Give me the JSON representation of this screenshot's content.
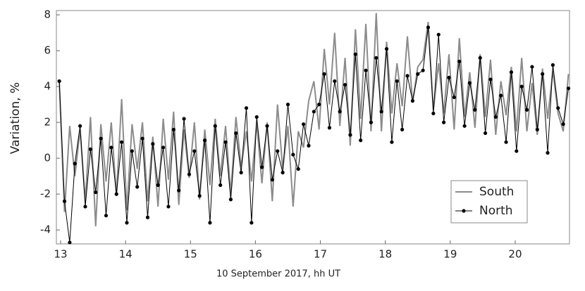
{
  "chart_data": {
    "type": "line",
    "x_label": "10 September 2017, hh UT",
    "y_label": "Variation, %",
    "xlim": [
      12.935,
      20.836
    ],
    "ylim": [
      -4.78,
      8.24
    ],
    "xticks": [
      13,
      14,
      15,
      16,
      17,
      18,
      19,
      20
    ],
    "yticks": [
      -4,
      -2,
      0,
      2,
      4,
      6,
      8
    ],
    "grid": false,
    "legend": "lower right",
    "x": [
      12.98,
      13.06,
      13.14,
      13.22,
      13.3,
      13.38,
      13.46,
      13.54,
      13.62,
      13.7,
      13.78,
      13.86,
      13.94,
      14.02,
      14.1,
      14.18,
      14.26,
      14.34,
      14.42,
      14.5,
      14.58,
      14.66,
      14.74,
      14.82,
      14.9,
      14.98,
      15.06,
      15.14,
      15.22,
      15.3,
      15.38,
      15.46,
      15.54,
      15.62,
      15.7,
      15.78,
      15.86,
      15.94,
      16.02,
      16.1,
      16.18,
      16.26,
      16.34,
      16.42,
      16.5,
      16.58,
      16.66,
      16.74,
      16.82,
      16.9,
      16.98,
      17.06,
      17.14,
      17.22,
      17.3,
      17.38,
      17.46,
      17.54,
      17.62,
      17.7,
      17.78,
      17.86,
      17.94,
      18.02,
      18.1,
      18.18,
      18.26,
      18.34,
      18.42,
      18.5,
      18.58,
      18.66,
      18.74,
      18.82,
      18.9,
      18.98,
      19.06,
      19.14,
      19.22,
      19.3,
      19.38,
      19.46,
      19.54,
      19.62,
      19.7,
      19.78,
      19.86,
      19.94,
      20.02,
      20.1,
      20.18,
      20.26,
      20.34,
      20.42,
      20.5,
      20.58,
      20.66,
      20.74,
      20.82
    ],
    "series": [
      {
        "name": "South",
        "color": "#8c8c8c",
        "marker": false,
        "values": [
          4.2,
          -3.0,
          1.8,
          -1.0,
          1.6,
          -2.4,
          2.3,
          -3.8,
          1.9,
          -1.3,
          2.0,
          -2.1,
          3.3,
          -2.9,
          1.9,
          -0.6,
          2.0,
          -2.4,
          1.2,
          -2.7,
          2.2,
          -1.2,
          2.6,
          -2.6,
          1.6,
          -1.1,
          2.0,
          -2.3,
          1.6,
          -1.5,
          2.2,
          -1.0,
          1.8,
          -2.0,
          2.3,
          -0.5,
          1.5,
          -1.3,
          2.0,
          -1.4,
          2.0,
          -2.4,
          3.0,
          -0.6,
          1.8,
          -2.7,
          1.5,
          0.6,
          3.2,
          4.3,
          1.6,
          6.1,
          3.0,
          7.0,
          1.8,
          5.6,
          0.7,
          7.2,
          2.2,
          7.5,
          1.5,
          8.1,
          1.5,
          6.5,
          2.5,
          5.3,
          2.9,
          6.8,
          3.1,
          5.1,
          5.5,
          7.6,
          2.7,
          5.3,
          2.5,
          5.8,
          1.6,
          6.7,
          2.3,
          4.8,
          1.7,
          5.8,
          2.3,
          5.5,
          1.3,
          4.3,
          2.4,
          5.1,
          1.5,
          5.6,
          1.5,
          4.2,
          1.3,
          5.0,
          2.2,
          4.9,
          2.5,
          1.5,
          4.7
        ]
      },
      {
        "name": "North",
        "color": "#000000",
        "marker": true,
        "values": [
          4.3,
          -2.4,
          -4.7,
          -0.3,
          1.8,
          -2.7,
          0.5,
          -1.9,
          1.1,
          -3.2,
          0.6,
          -2.0,
          0.9,
          -3.6,
          0.4,
          -1.6,
          1.1,
          -3.3,
          0.8,
          -1.5,
          0.6,
          -2.7,
          1.6,
          -1.8,
          2.2,
          -0.9,
          0.4,
          -2.1,
          1.0,
          -3.6,
          1.8,
          -1.5,
          0.9,
          -2.3,
          1.4,
          -0.8,
          2.8,
          -3.6,
          2.3,
          -0.5,
          1.8,
          -1.2,
          0.4,
          -0.8,
          3.0,
          0.2,
          -0.6,
          1.9,
          0.7,
          2.6,
          3.0,
          4.7,
          1.7,
          4.3,
          2.6,
          4.1,
          1.3,
          5.8,
          1.0,
          4.9,
          2.0,
          5.6,
          2.6,
          6.1,
          0.9,
          4.3,
          1.6,
          4.6,
          3.2,
          4.7,
          4.9,
          7.3,
          2.5,
          6.9,
          2.0,
          4.5,
          3.4,
          5.4,
          1.8,
          4.2,
          2.7,
          5.6,
          1.4,
          4.4,
          2.3,
          3.5,
          0.9,
          4.8,
          0.4,
          4.0,
          2.7,
          5.1,
          1.6,
          4.7,
          0.3,
          5.2,
          2.8,
          1.9,
          3.9
        ]
      }
    ]
  }
}
